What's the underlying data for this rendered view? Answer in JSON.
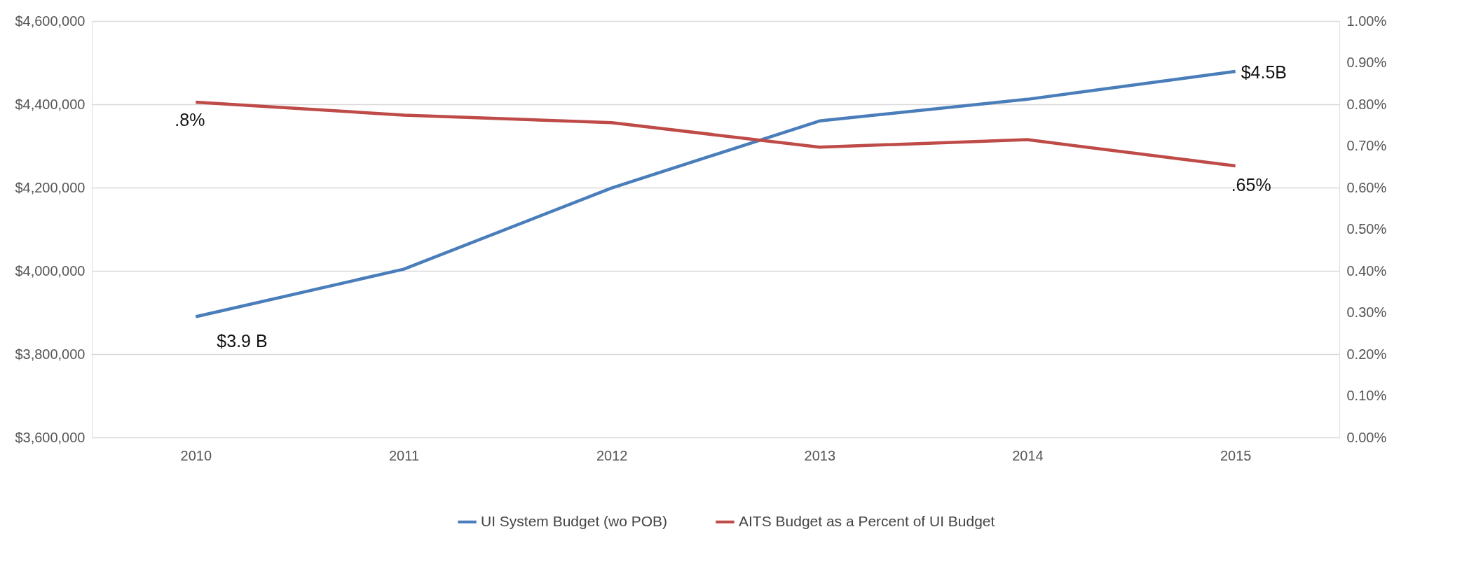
{
  "chart_data": {
    "type": "line",
    "categories": [
      "2010",
      "2011",
      "2012",
      "2013",
      "2014",
      "2015"
    ],
    "series": [
      {
        "name": "UI System Budget (wo POB)",
        "color": "#4a7ebb",
        "values": [
          3890000,
          4004000,
          4199000,
          4360000,
          4412000,
          4479000
        ]
      },
      {
        "name": "AITS Budget as a Percent of UI Budget",
        "color": "#be4b48",
        "axis": "y2",
        "values": [
          0.805,
          0.774,
          0.756,
          0.697,
          0.715,
          0.652
        ]
      }
    ],
    "ylim": [
      3600000,
      4600000
    ],
    "yticks": [
      {
        "value": 3600000,
        "label": "$3,600,000"
      },
      {
        "value": 3800000,
        "label": "$3,800,000"
      },
      {
        "value": 4000000,
        "label": "$4,000,000"
      },
      {
        "value": 4200000,
        "label": "$4,200,000"
      },
      {
        "value": 4400000,
        "label": "$4,400,000"
      },
      {
        "value": 4600000,
        "label": "$4,600,000"
      }
    ],
    "y2lim": [
      0,
      1
    ],
    "y2ticks": [
      {
        "value": 0,
        "label": "0.00%"
      },
      {
        "value": 0.1,
        "label": "0.10%"
      },
      {
        "value": 0.2,
        "label": "0.20%"
      },
      {
        "value": 0.3,
        "label": "0.30%"
      },
      {
        "value": 0.4,
        "label": "0.40%"
      },
      {
        "value": 0.5,
        "label": "0.50%"
      },
      {
        "value": 0.6,
        "label": "0.60%"
      },
      {
        "value": 0.7,
        "label": "0.70%"
      },
      {
        "value": 0.8,
        "label": "0.80%"
      },
      {
        "value": 0.9,
        "label": "0.90%"
      },
      {
        "value": 1,
        "label": "1.00%"
      }
    ],
    "annotations": [
      {
        "text": "$3.9  B",
        "x": "2010",
        "y": 3890000
      },
      ".8%",
      {
        "text": "$4.5B",
        "x": "2015",
        "y": 4479000
      },
      ".65%"
    ],
    "grid": "y",
    "legend": "bottom",
    "marker": "none",
    "line_style": "solid"
  }
}
